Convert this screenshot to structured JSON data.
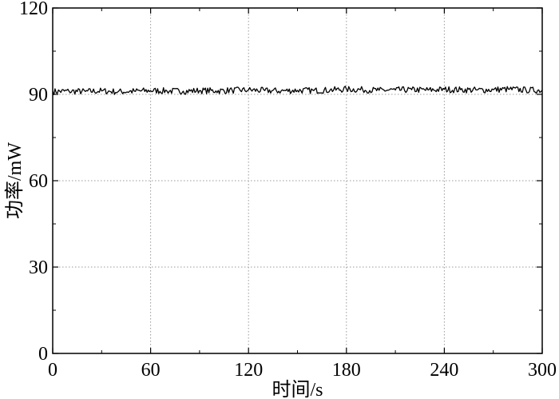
{
  "chart_data": {
    "type": "line",
    "xlabel": "时间/s",
    "ylabel": "功率/mW",
    "xlim": [
      0,
      300
    ],
    "ylim": [
      0,
      120
    ],
    "xticks": [
      0,
      60,
      120,
      180,
      240,
      300
    ],
    "yticks": [
      0,
      30,
      60,
      90,
      120
    ],
    "x_tick_labels": [
      "0",
      "60",
      "120",
      "180",
      "240",
      "300"
    ],
    "y_tick_labels": [
      "0",
      "30",
      "60",
      "90",
      "120"
    ],
    "grid": true,
    "legend": "none",
    "line_color": "#000000",
    "series": [
      {
        "x": [
          0,
          10,
          20,
          30,
          40,
          50,
          60,
          70,
          80,
          90,
          100,
          110,
          120,
          130,
          140,
          150,
          160,
          170,
          180,
          190,
          200,
          210,
          220,
          230,
          240,
          250,
          260,
          270,
          280,
          290,
          300
        ],
        "values": [
          91,
          91.1,
          91,
          91.2,
          90.9,
          91.1,
          91.3,
          91.2,
          91.1,
          91.3,
          91.2,
          91.4,
          91.5,
          91.3,
          91.2,
          91.4,
          91.3,
          91.5,
          91.8,
          91.6,
          91.4,
          91.5,
          91.6,
          91.5,
          91.7,
          91.6,
          91.5,
          91.6,
          91.8,
          91.5,
          91.4
        ]
      }
    ]
  }
}
